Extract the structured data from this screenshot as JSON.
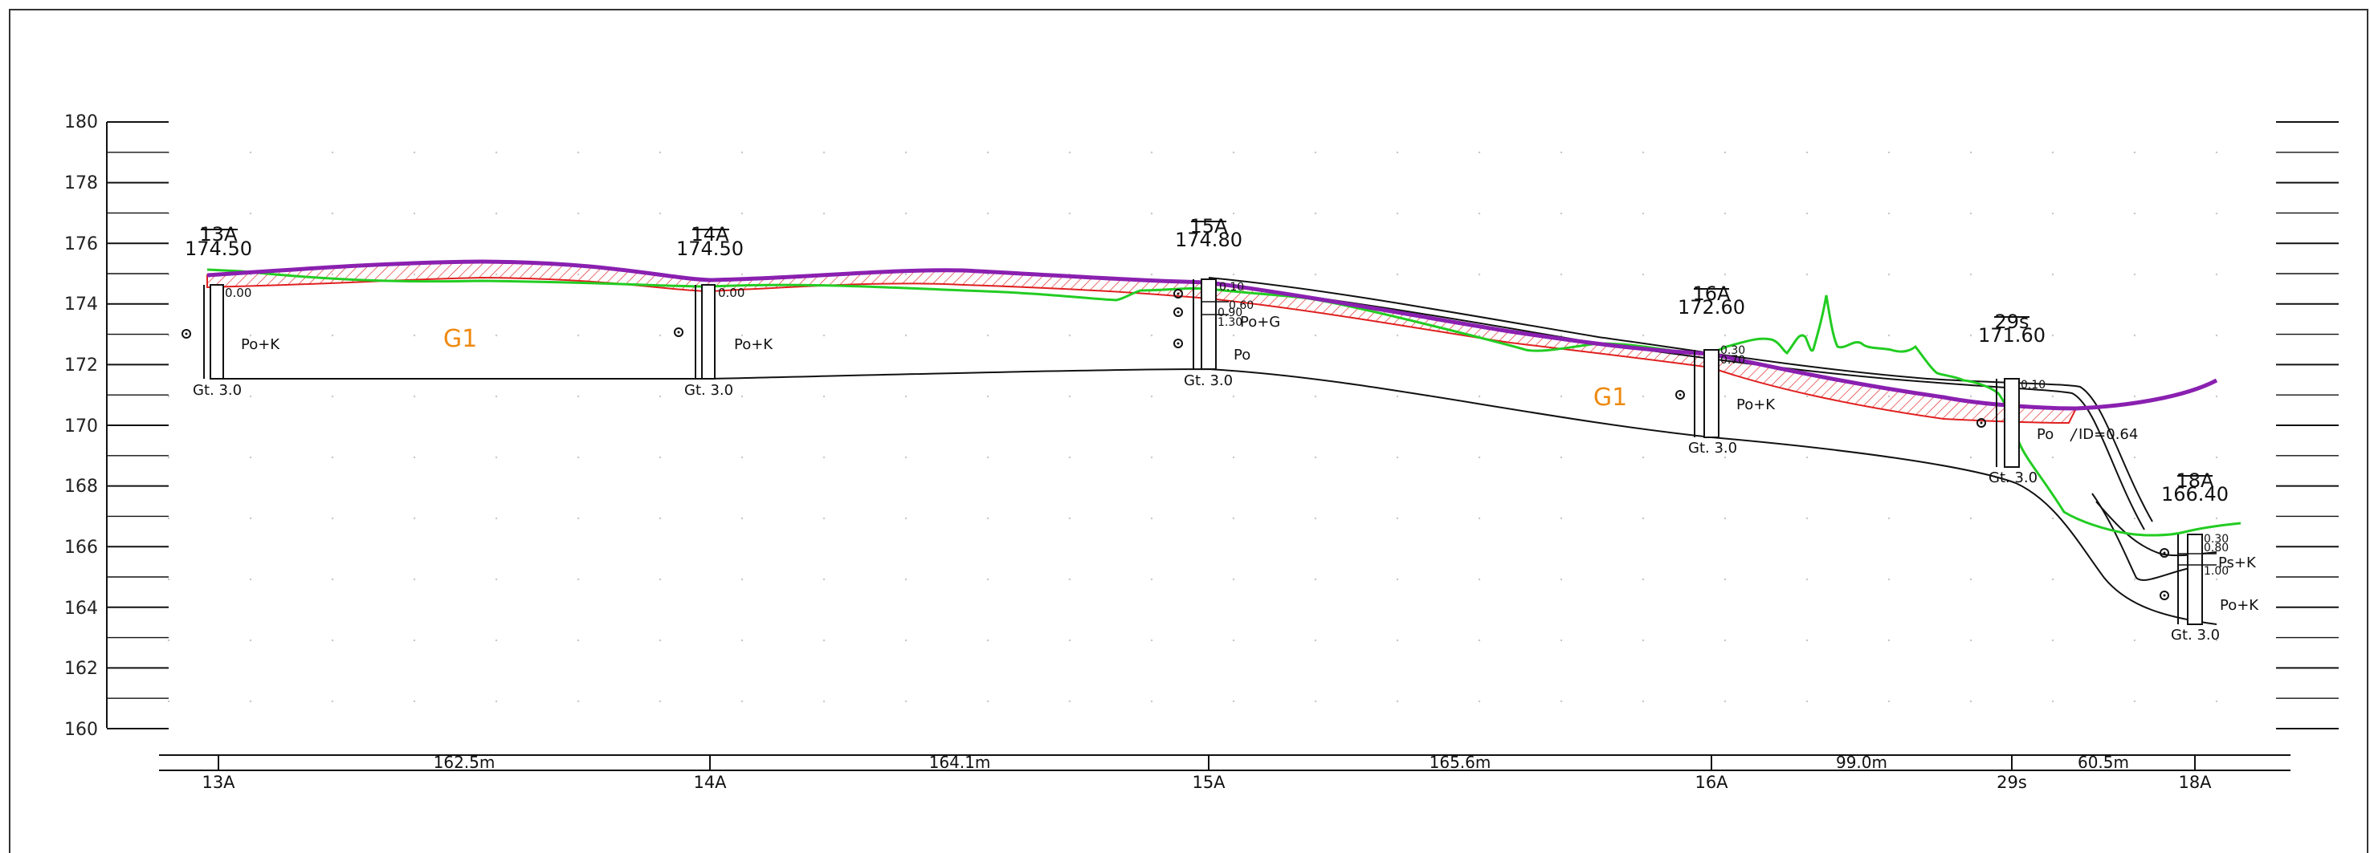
{
  "y_axis": {
    "ticks": [
      "180",
      "178",
      "176",
      "174",
      "172",
      "170",
      "168",
      "166",
      "164",
      "162",
      "160"
    ]
  },
  "boreholes": [
    {
      "id": "13A",
      "elev": "174.50",
      "mark": "0.00",
      "soil": "Po+K",
      "depth": "Gt.  3.0"
    },
    {
      "id": "14A",
      "elev": "174.50",
      "mark": "0.00",
      "soil": "Po+K",
      "depth": "Gt.  3.0"
    },
    {
      "id": "15A",
      "elev": "174.80",
      "marks": [
        "0.10",
        "0.60",
        "0.90",
        "1.30"
      ],
      "soil_top": "Po+G",
      "soil": "Po",
      "depth": "Gt.  3.0"
    },
    {
      "id": "16A",
      "elev": "172.60",
      "marks": [
        "0.30",
        "0.70"
      ],
      "soil": "Po+K",
      "depth": "Gt.  3.0"
    },
    {
      "id": "29s",
      "elev": "171.60",
      "mark": "0.10",
      "soil": "Po",
      "note": "ID=0.64",
      "depth": "Gt.  3.0"
    },
    {
      "id": "18A",
      "elev": "166.40",
      "marks": [
        "0.30",
        "0.80",
        "1.00"
      ],
      "soil_top": "Ps+K",
      "soil": "Po+K",
      "depth": "Gt.  3.0"
    }
  ],
  "zone_labels": [
    "G1",
    "G1"
  ],
  "distances": [
    "162.5m",
    "164.1m",
    "165.6m",
    "99.0m",
    "60.5m"
  ],
  "station_labels": [
    "13A",
    "14A",
    "15A",
    "16A",
    "29s",
    "18A"
  ],
  "colors": {
    "terrain": "#22cc22",
    "design": "#8a20b0",
    "hatch": "#e02020",
    "zone": "#ee8a10",
    "line": "#111111",
    "grid": "#c8c8c8"
  }
}
